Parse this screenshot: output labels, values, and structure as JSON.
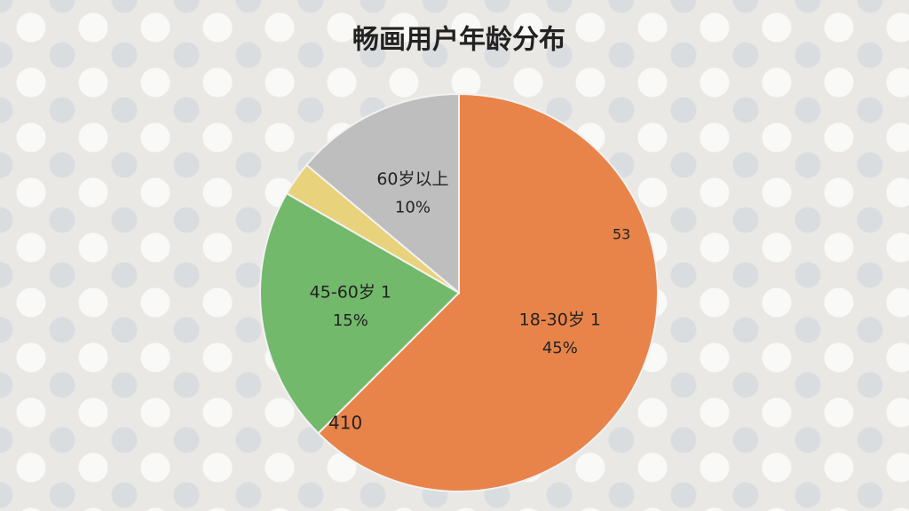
{
  "chart_data": {
    "type": "pie",
    "title": "畅画用户年龄分布",
    "categories": [
      "18-30岁 1",
      "45-60岁 1",
      null,
      "60岁以上"
    ],
    "values": [
      45,
      15,
      2,
      10
    ],
    "value_labels": [
      "45%",
      "15%",
      null,
      "10%"
    ],
    "colors": [
      "#e8844a",
      "#72b96b",
      "#e9d27c",
      "#bebebe"
    ],
    "annotations": [
      "53",
      "410"
    ]
  }
}
